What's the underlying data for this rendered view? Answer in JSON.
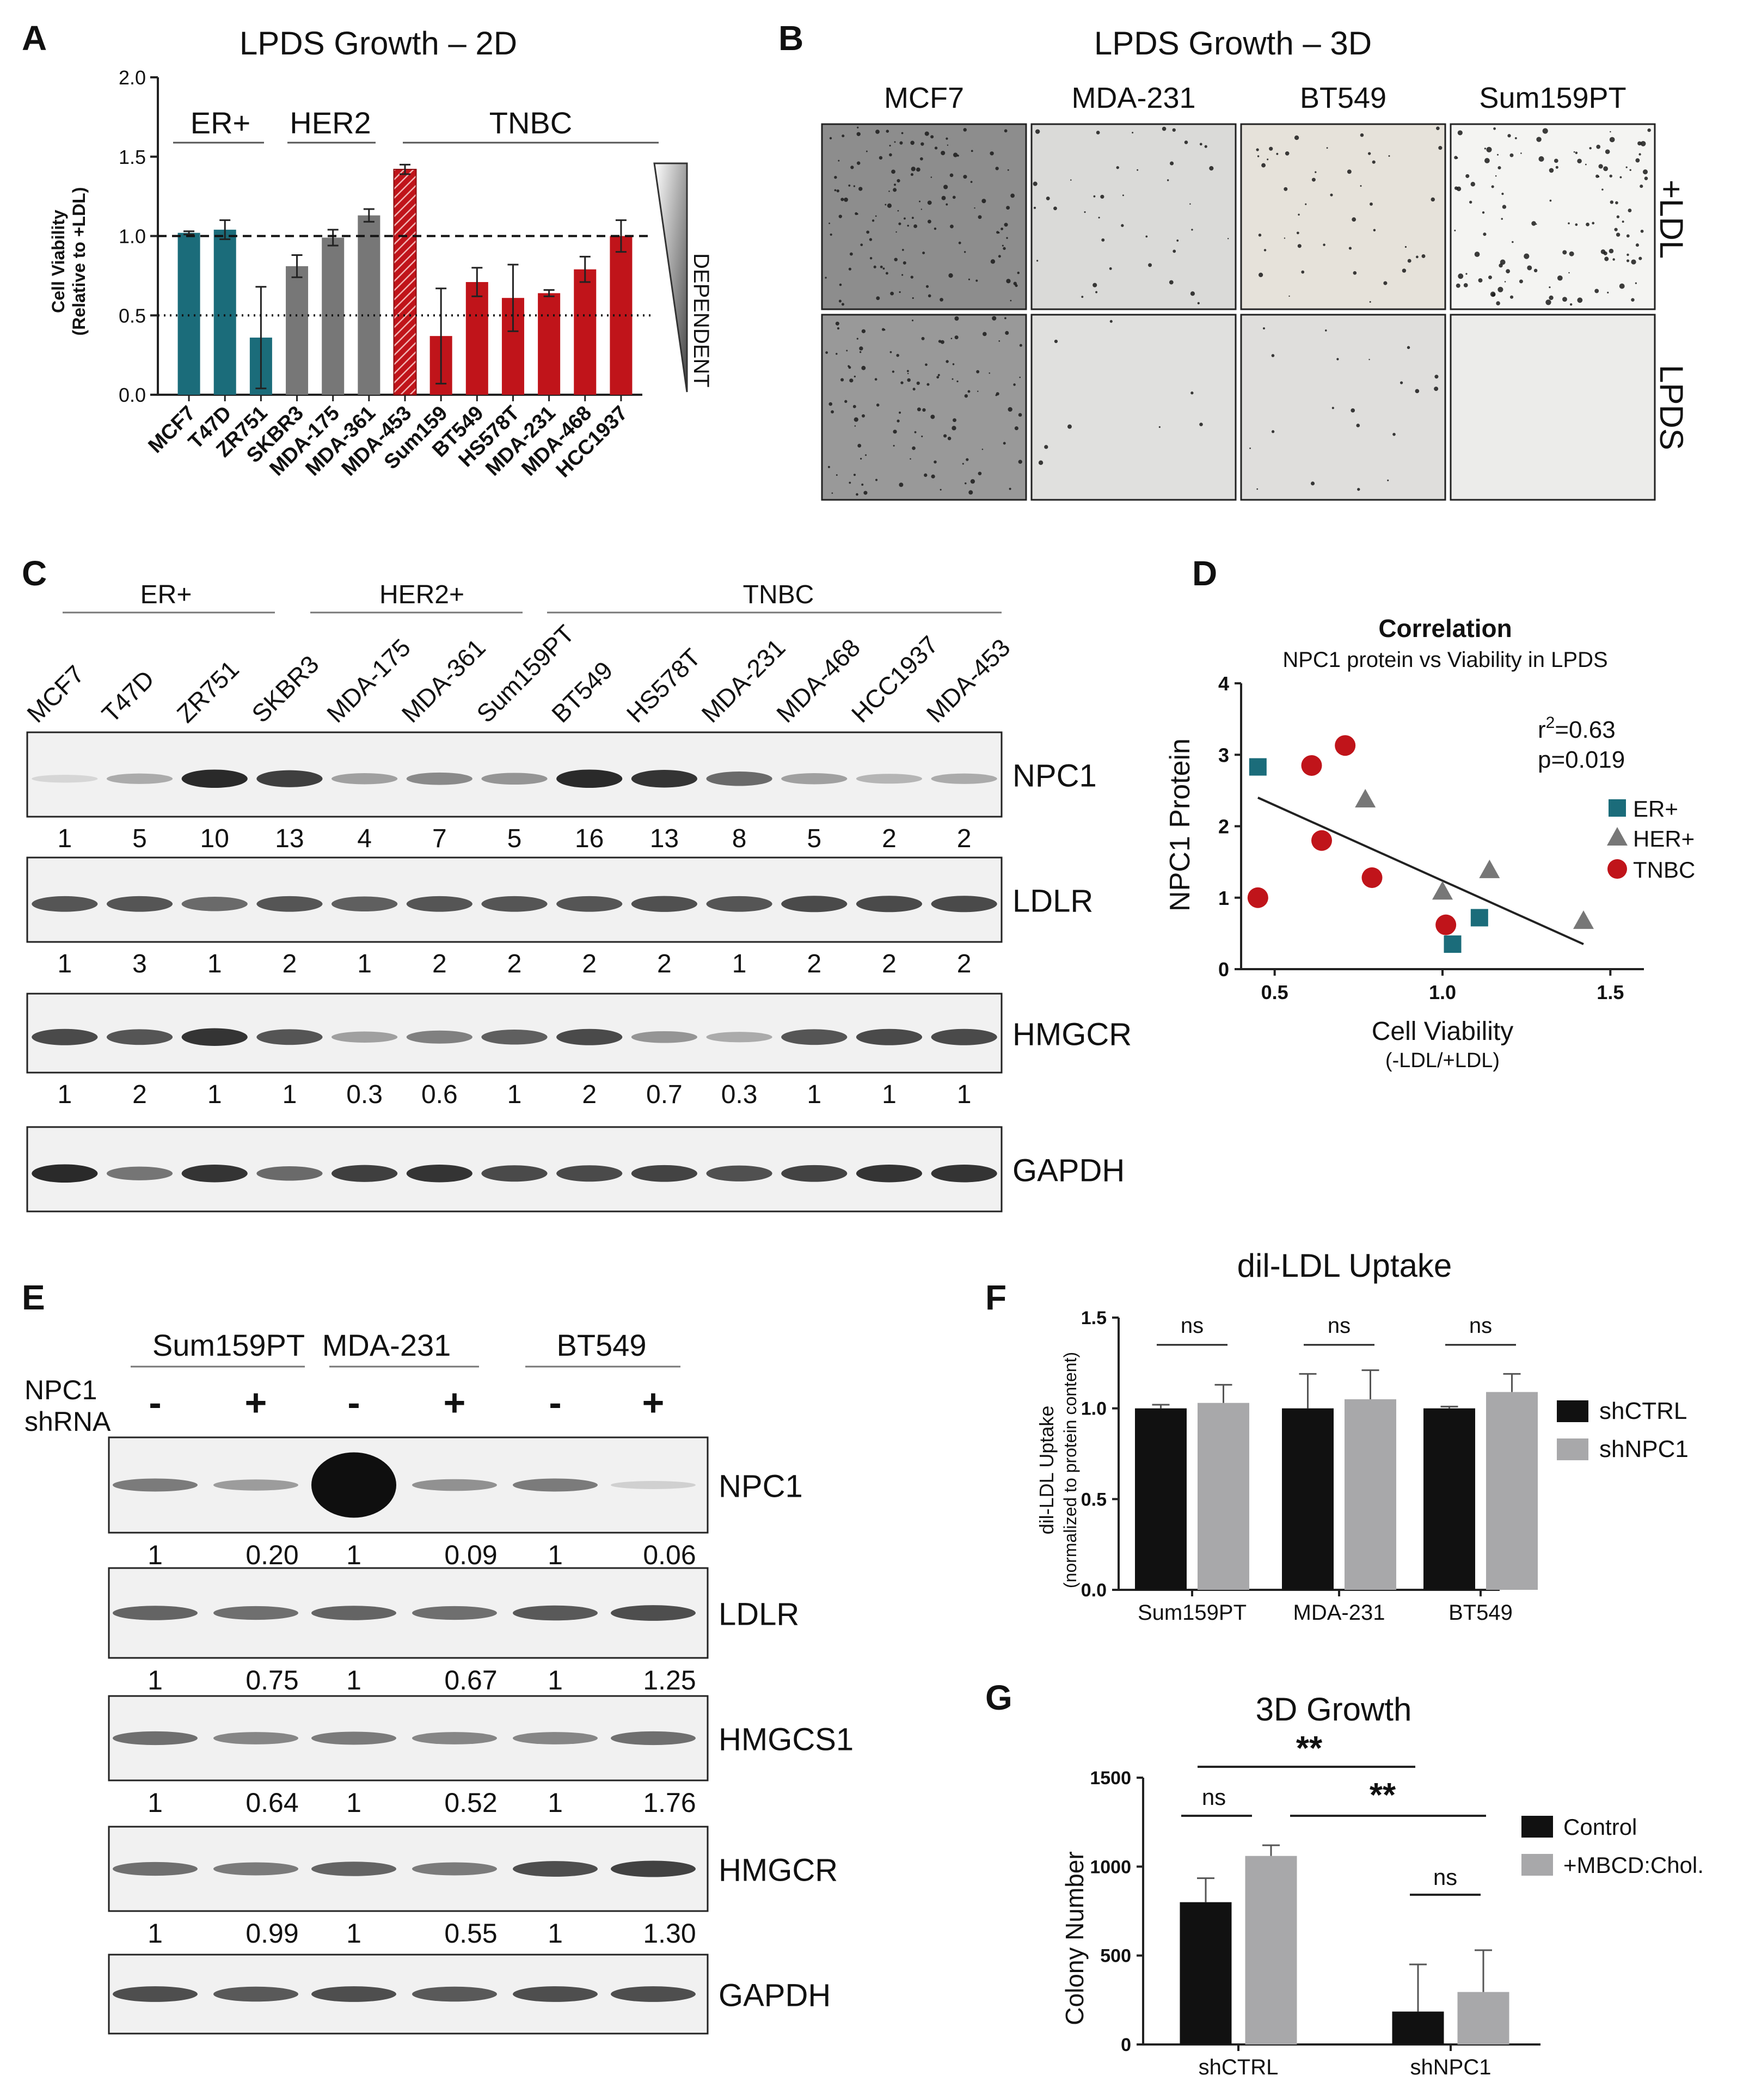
{
  "colors": {
    "er": "#1b6c7a",
    "her2": "#777777",
    "tnbc": "#c0141a",
    "ctrl": "#111111",
    "treat": "#a8a8aa"
  },
  "panelA": {
    "letter": "A",
    "title": "LPDS Growth – 2D",
    "ylabel_1": "Cell Viability",
    "ylabel_2": "(Relative to +LDL)",
    "groups": [
      "ER+",
      "HER2",
      "TNBC"
    ],
    "side_label": "DEPENDENT"
  },
  "panelB": {
    "letter": "B",
    "title": "LPDS Growth – 3D",
    "columns": [
      "MCF7",
      "MDA-231",
      "BT549",
      "Sum159PT"
    ],
    "rows": [
      "+LDL",
      "LPDS"
    ]
  },
  "panelC": {
    "letter": "C",
    "groups": [
      "ER+",
      "HER2+",
      "TNBC"
    ],
    "lanes": [
      "MCF7",
      "T47D",
      "ZR751",
      "SKBR3",
      "MDA-175",
      "MDA-361",
      "Sum159PT",
      "BT549",
      "HS578T",
      "MDA-231",
      "MDA-468",
      "HCC1937",
      "MDA-453"
    ],
    "blots": [
      {
        "name": "NPC1",
        "quant": [
          "1",
          "5",
          "10",
          "13",
          "4",
          "7",
          "5",
          "16",
          "13",
          "8",
          "5",
          "2",
          "2"
        ]
      },
      {
        "name": "LDLR",
        "quant": [
          "1",
          "3",
          "1",
          "2",
          "1",
          "2",
          "2",
          "2",
          "2",
          "1",
          "2",
          "2",
          "2"
        ]
      },
      {
        "name": "HMGCR",
        "quant": [
          "1",
          "2",
          "1",
          "1",
          "0.3",
          "0.6",
          "1",
          "2",
          "0.7",
          "0.3",
          "1",
          "1",
          "1"
        ]
      },
      {
        "name": "GAPDH",
        "quant": []
      }
    ]
  },
  "panelD": {
    "letter": "D",
    "title": "Correlation",
    "subtitle": "NPC1 protein vs Viability in LPDS",
    "r2_prefix": "r",
    "r2_sup": "2",
    "r2_value": "=0.63",
    "p": "p=0.019",
    "legend": [
      "ER+",
      "HER+",
      "TNBC"
    ]
  },
  "panelE": {
    "letter": "E",
    "lines": [
      "Sum159PT",
      "MDA-231",
      "BT549"
    ],
    "row_label_1": "NPC1",
    "row_label_2": "shRNA",
    "signs": [
      "-",
      "+",
      "-",
      "+",
      "-",
      "+"
    ],
    "blots": [
      {
        "name": "NPC1",
        "quant": [
          "1",
          "0.20",
          "1",
          "0.09",
          "1",
          "0.06"
        ]
      },
      {
        "name": "LDLR",
        "quant": [
          "1",
          "0.75",
          "1",
          "0.67",
          "1",
          "1.25"
        ]
      },
      {
        "name": "HMGCS1",
        "quant": [
          "1",
          "0.64",
          "1",
          "0.52",
          "1",
          "1.76"
        ]
      },
      {
        "name": "HMGCR",
        "quant": [
          "1",
          "0.99",
          "1",
          "0.55",
          "1",
          "1.30"
        ]
      },
      {
        "name": "GAPDH",
        "quant": []
      }
    ]
  },
  "panelF": {
    "letter": "F",
    "title": "dil-LDL Uptake",
    "ylabel_1": "dil-LDL Uptake",
    "ylabel_2": "(normalized to protein content)",
    "legend": [
      "shCTRL",
      "shNPC1"
    ],
    "sig": [
      "ns",
      "ns",
      "ns"
    ]
  },
  "panelG": {
    "letter": "G",
    "title": "3D Growth",
    "ylabel": "Colony Number",
    "legend": [
      "Control",
      "+MBCD:Chol."
    ],
    "sig_top": "**",
    "sig_right": "**",
    "sig_ns": [
      "ns",
      "ns"
    ]
  },
  "chart_data": [
    {
      "type": "bar",
      "id": "A",
      "categories": [
        "MCF7",
        "T47D",
        "ZR751",
        "SKBR3",
        "MDA-175",
        "MDA-361",
        "MDA-453",
        "Sum159",
        "BT549",
        "HS578T",
        "MDA-231",
        "MDA-468",
        "HCC1937"
      ],
      "groups": [
        "ER+",
        "ER+",
        "ER+",
        "HER2",
        "HER2",
        "HER2",
        "HER2",
        "TNBC",
        "TNBC",
        "TNBC",
        "TNBC",
        "TNBC",
        "TNBC"
      ],
      "values": [
        1.02,
        1.04,
        0.36,
        0.81,
        0.99,
        1.13,
        1.42,
        0.37,
        0.71,
        0.61,
        0.64,
        0.79,
        1.0
      ],
      "errors": [
        0.01,
        0.06,
        0.32,
        0.07,
        0.05,
        0.04,
        0.03,
        0.3,
        0.09,
        0.21,
        0.02,
        0.08,
        0.1
      ],
      "ylim": [
        0,
        2.0
      ],
      "yticks": [
        "0.0",
        "0.5",
        "1.0",
        "1.5",
        "2.0"
      ],
      "ref_lines": [
        1.0,
        0.5
      ]
    },
    {
      "type": "scatter",
      "id": "D",
      "xlabel": "Cell Viability",
      "xlabel_sub": "(-LDL/+LDL)",
      "ylabel": "NPC1 Protein",
      "xlim": [
        0.4,
        1.6
      ],
      "ylim": [
        0,
        4
      ],
      "xticks": [
        "0.5",
        "1.0",
        "1.5"
      ],
      "yticks": [
        "0",
        "1",
        "2",
        "3",
        "4"
      ],
      "series": [
        {
          "name": "ER+",
          "marker": "square",
          "points": [
            [
              0.45,
              2.83
            ],
            [
              1.03,
              0.35
            ],
            [
              1.11,
              0.72
            ]
          ]
        },
        {
          "name": "HER+",
          "marker": "triangle",
          "points": [
            [
              0.77,
              2.37
            ],
            [
              1.0,
              1.08
            ],
            [
              1.14,
              1.38
            ],
            [
              1.42,
              0.67
            ]
          ]
        },
        {
          "name": "TNBC",
          "marker": "circle",
          "points": [
            [
              0.45,
              1.0
            ],
            [
              0.61,
              2.85
            ],
            [
              0.64,
              1.8
            ],
            [
              0.71,
              3.13
            ],
            [
              0.79,
              1.28
            ],
            [
              1.01,
              0.62
            ]
          ]
        }
      ],
      "fit": [
        [
          0.45,
          2.4
        ],
        [
          1.42,
          0.35
        ]
      ]
    },
    {
      "type": "bar",
      "id": "F",
      "categories": [
        "Sum159PT",
        "MDA-231",
        "BT549"
      ],
      "series": [
        {
          "name": "shCTRL",
          "values": [
            1.0,
            1.0,
            1.0
          ],
          "errors": [
            0.02,
            0.19,
            0.01
          ]
        },
        {
          "name": "shNPC1",
          "values": [
            1.03,
            1.05,
            1.09
          ],
          "errors": [
            0.1,
            0.16,
            0.1
          ]
        }
      ],
      "ylim": [
        0,
        1.5
      ],
      "yticks": [
        "0.0",
        "0.5",
        "1.0",
        "1.5"
      ]
    },
    {
      "type": "bar",
      "id": "G",
      "categories": [
        "shCTRL",
        "shNPC1"
      ],
      "series": [
        {
          "name": "Control",
          "values": [
            800,
            185
          ],
          "errors": [
            135,
            265
          ]
        },
        {
          "name": "+MBCD:Chol.",
          "values": [
            1060,
            295
          ],
          "errors": [
            60,
            235
          ]
        }
      ],
      "ylim": [
        0,
        1500
      ],
      "yticks": [
        "0",
        "500",
        "1000",
        "1500"
      ]
    }
  ]
}
